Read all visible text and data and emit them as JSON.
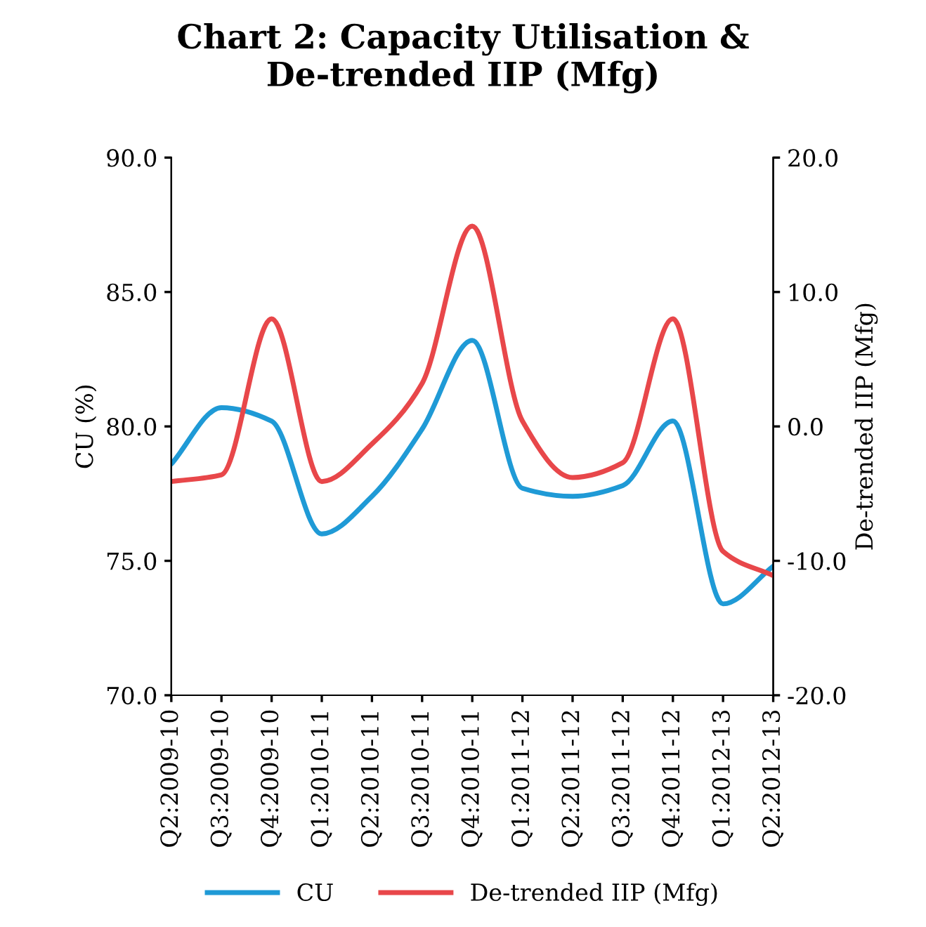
{
  "chart_data": {
    "type": "line",
    "title": "Chart 2: Capacity Utilisation &\nDe-trended IIP (Mfg)",
    "ylabel": "CU (%)",
    "y2label": "De-trended IIP (Mfg)",
    "categories": [
      "Q2:2009-10",
      "Q3:2009-10",
      "Q4:2009-10",
      "Q1:2010-11",
      "Q2:2010-11",
      "Q3:2010-11",
      "Q4:2010-11",
      "Q1:2011-12",
      "Q2:2011-12",
      "Q3:2011-12",
      "Q4:2011-12",
      "Q1:2012-13",
      "Q2:2012-13"
    ],
    "series": [
      {
        "name": "CU",
        "color": "#1f9ad6",
        "values": [
          78.6,
          80.7,
          80.2,
          76.0,
          77.4,
          79.9,
          83.2,
          77.7,
          77.4,
          77.8,
          80.2,
          73.4,
          74.8
        ]
      },
      {
        "name": "De-trended IIP (Mfg)",
        "color": "#e8474a",
        "axis": "y2",
        "values": [
          -4.1,
          -3.6,
          8.0,
          -4.1,
          -1.3,
          3.2,
          14.9,
          0.4,
          -3.8,
          -2.7,
          8.0,
          -9.3,
          -11.1
        ]
      }
    ],
    "ylim": [
      70,
      90
    ],
    "yticks": [
      {
        "value": 70,
        "label": "70.0"
      },
      {
        "value": 75,
        "label": "75.0"
      },
      {
        "value": 80,
        "label": "80.0"
      },
      {
        "value": 85,
        "label": "85.0"
      },
      {
        "value": 90,
        "label": "90.0"
      }
    ],
    "y2lim": [
      -20,
      20
    ],
    "y2ticks": [
      {
        "value": -20,
        "label": "-20.0"
      },
      {
        "value": -10,
        "label": "-10.0"
      },
      {
        "value": 0,
        "label": "0.0"
      },
      {
        "value": 10,
        "label": "10.0"
      },
      {
        "value": 20,
        "label": "20.0"
      }
    ],
    "legend": "bottom",
    "grid": false,
    "marker": "none",
    "line_style": "solid"
  }
}
